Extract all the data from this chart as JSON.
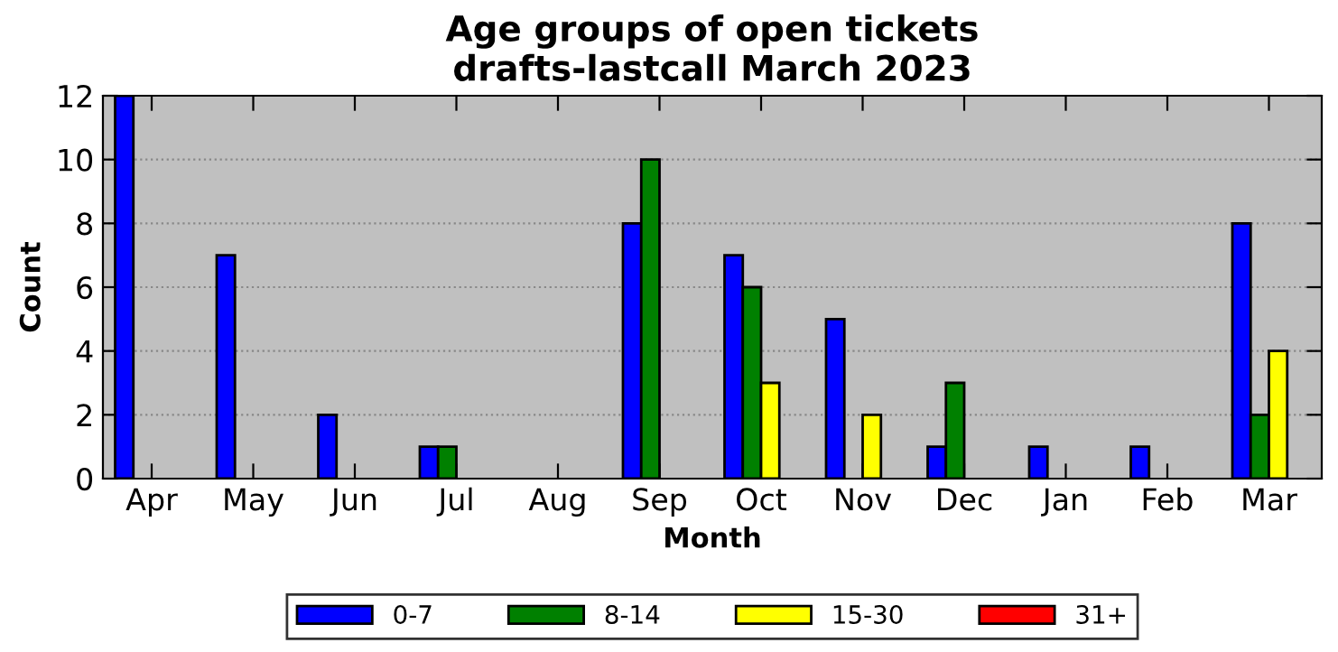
{
  "chart_data": {
    "type": "bar",
    "title": "Age groups of open tickets\ndrafts-lastcall March 2023",
    "xlabel": "Month",
    "ylabel": "Count",
    "categories": [
      "Apr",
      "May",
      "Jun",
      "Jul",
      "Aug",
      "Sep",
      "Oct",
      "Nov",
      "Dec",
      "Jan",
      "Feb",
      "Mar"
    ],
    "series": [
      {
        "name": "0-7",
        "color": "#0000ff",
        "values": [
          12,
          7,
          2,
          1,
          0,
          8,
          7,
          5,
          1,
          1,
          1,
          8
        ]
      },
      {
        "name": "8-14",
        "color": "#008000",
        "values": [
          0,
          0,
          0,
          1,
          0,
          10,
          6,
          0,
          3,
          0,
          0,
          2
        ]
      },
      {
        "name": "15-30",
        "color": "#ffff00",
        "values": [
          0,
          0,
          0,
          0,
          0,
          0,
          3,
          2,
          0,
          0,
          0,
          4
        ]
      },
      {
        "name": "31+",
        "color": "#ff0000",
        "values": [
          0,
          0,
          0,
          0,
          0,
          0,
          0,
          0,
          0,
          0,
          0,
          0
        ]
      }
    ],
    "ylim": [
      0,
      12
    ],
    "yticks": [
      0,
      2,
      4,
      6,
      8,
      10,
      12
    ],
    "grid": "y",
    "legend": "bottom"
  }
}
